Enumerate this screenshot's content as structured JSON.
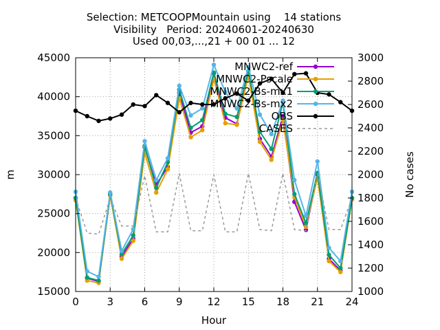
{
  "chart_data": {
    "type": "line",
    "title_lines": [
      "Selection: METCOOPMountain using    14 stations",
      "Visibility   Period: 20240601-20240630",
      "Used 00,03,...,21 + 00 01 ... 12"
    ],
    "xlabel": "Hour",
    "ylabel": "m",
    "y2label": "No cases",
    "xlim": [
      0,
      24
    ],
    "ylim": [
      15000,
      45000
    ],
    "y2lim": [
      1000,
      3000
    ],
    "xticks": [
      0,
      3,
      6,
      9,
      12,
      15,
      18,
      21,
      24
    ],
    "yticks": [
      15000,
      20000,
      25000,
      30000,
      35000,
      40000,
      45000
    ],
    "y2ticks": [
      1000,
      1200,
      1400,
      1600,
      1800,
      2000,
      2200,
      2400,
      2600,
      2800,
      3000
    ],
    "legend_position": "top-right",
    "x": [
      0,
      1,
      2,
      3,
      4,
      5,
      6,
      7,
      8,
      9,
      10,
      11,
      12,
      13,
      14,
      15,
      16,
      17,
      18,
      19,
      20,
      21,
      22,
      23,
      24
    ],
    "series": [
      {
        "name": "MNWC2-ref",
        "color": "#9400d3",
        "marker": "circle",
        "axis": "y",
        "values": [
          27000,
          16700,
          16300,
          27500,
          19500,
          21800,
          33500,
          28700,
          31000,
          40500,
          35400,
          36200,
          43000,
          37300,
          36500,
          43000,
          34600,
          32300,
          37500,
          26500,
          22900,
          30000,
          19200,
          17700,
          27000
        ]
      },
      {
        "name": "MNWC2-Pscale",
        "color": "#e69f00",
        "marker": "circle",
        "axis": "y",
        "values": [
          26700,
          16400,
          16100,
          27300,
          19200,
          21500,
          32800,
          27700,
          30700,
          39800,
          34800,
          35700,
          42300,
          36600,
          36400,
          42700,
          34200,
          31900,
          37000,
          27100,
          23300,
          29600,
          18900,
          17500,
          26800
        ]
      },
      {
        "name": "MNWC2-Bs-mx1",
        "color": "#009e73",
        "marker": "circle",
        "axis": "y",
        "values": [
          27000,
          16800,
          16400,
          27500,
          19800,
          22200,
          33700,
          28300,
          31600,
          40900,
          36000,
          37000,
          43100,
          37800,
          37400,
          43300,
          35500,
          33300,
          39300,
          27500,
          23800,
          30200,
          19700,
          18000,
          27000
        ]
      },
      {
        "name": "MNWC2-Bs-mx2",
        "color": "#56b4e9",
        "marker": "circle",
        "axis": "y",
        "values": [
          27800,
          17600,
          16900,
          27700,
          20200,
          23000,
          34300,
          29300,
          32100,
          41400,
          37600,
          38500,
          44100,
          40600,
          38500,
          43800,
          37700,
          35200,
          39500,
          29300,
          24700,
          31700,
          20600,
          18900,
          27800
        ]
      },
      {
        "name": "OBS",
        "color": "#000000",
        "marker": "circle",
        "axis": "y",
        "values": [
          38200,
          37500,
          36900,
          37200,
          37700,
          39000,
          38800,
          40200,
          39200,
          38000,
          39200,
          39000,
          39000,
          39800,
          40400,
          39500,
          41700,
          42300,
          40500,
          42900,
          43000,
          40500,
          40300,
          39300,
          38200
        ]
      },
      {
        "name": "CASES",
        "color": "#999999",
        "marker": "none",
        "dash": true,
        "axis": "y2",
        "values": [
          1800,
          1500,
          1490,
          1800,
          1560,
          1560,
          1990,
          1510,
          1510,
          2010,
          1520,
          1520,
          2000,
          1510,
          1510,
          2010,
          1530,
          1520,
          2010,
          1530,
          1520,
          2010,
          1530,
          1530,
          1800
        ]
      }
    ]
  }
}
